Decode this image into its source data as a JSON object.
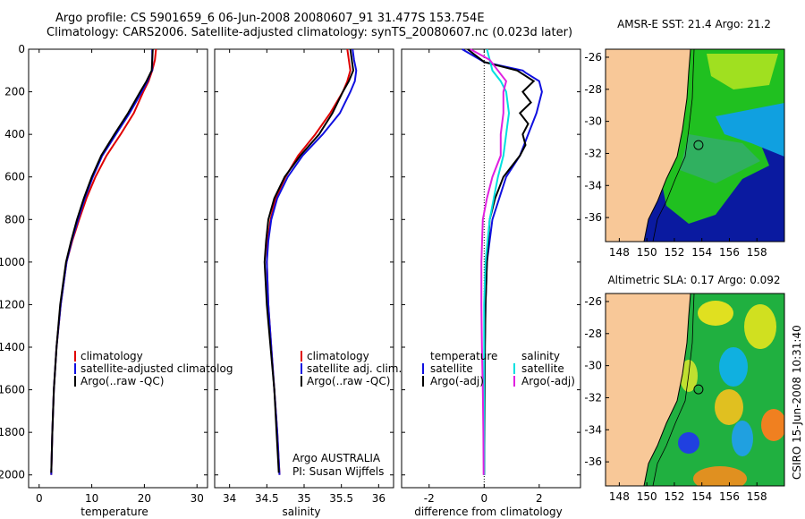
{
  "header": {
    "line1": "Argo profile: CS 5901659_6 06-Jun-2008 20080607_91 31.477S 153.754E",
    "line2": "Climatology: CARS2006. Satellite-adjusted climatology: synTS_20080607.nc (0.023d later)"
  },
  "colors": {
    "red": "#e00000",
    "blue": "#1010e0",
    "black": "#000000",
    "cyan": "#00e0e0",
    "magenta": "#e020e0",
    "land": "#f8c898",
    "ocean_bg": "#0000a0"
  },
  "chart_data": [
    {
      "type": "line",
      "xlabel": "temperature",
      "ylabel": "",
      "xlim": [
        -2,
        32
      ],
      "ylim": [
        2060,
        0
      ],
      "xticks": [
        0,
        10,
        20,
        30
      ],
      "yticks": [
        0,
        200,
        400,
        600,
        800,
        1000,
        1200,
        1400,
        1600,
        1800,
        2000
      ],
      "legend": [
        {
          "label": "climatology",
          "color": "red"
        },
        {
          "label": "satellite-adjusted climatolog",
          "color": "blue"
        },
        {
          "label": "Argo(..raw -QC)",
          "color": "black"
        }
      ],
      "series": [
        {
          "name": "climatology",
          "color": "red",
          "depth": [
            0,
            50,
            100,
            150,
            200,
            300,
            400,
            500,
            600,
            700,
            800,
            900,
            1000,
            1200,
            1400,
            1600,
            1800,
            2000
          ],
          "values": [
            22.2,
            22.0,
            21.5,
            20.8,
            19.8,
            18.0,
            15.5,
            12.8,
            10.7,
            9.0,
            7.6,
            6.3,
            5.2,
            4.1,
            3.3,
            2.8,
            2.5,
            2.3
          ]
        },
        {
          "name": "satellite-adjusted climatology",
          "color": "blue",
          "depth": [
            0,
            100,
            110,
            150,
            200,
            300,
            400,
            500,
            600,
            700,
            800,
            900,
            1000,
            1200,
            1400,
            1600,
            1800,
            2000
          ],
          "values": [
            21.5,
            21.5,
            21.2,
            20.6,
            19.5,
            17.2,
            14.6,
            12.0,
            10.2,
            8.7,
            7.4,
            6.2,
            5.2,
            4.1,
            3.3,
            2.8,
            2.5,
            2.3
          ]
        },
        {
          "name": "Argo(..raw -QC)",
          "color": "black",
          "depth": [
            0,
            100,
            150,
            200,
            300,
            400,
            500,
            600,
            700,
            800,
            900,
            1000,
            1200,
            1400,
            1600,
            1800,
            1990
          ],
          "values": [
            21.6,
            21.4,
            20.4,
            19.2,
            16.9,
            14.3,
            11.8,
            10.0,
            8.5,
            7.2,
            6.1,
            5.1,
            4.0,
            3.3,
            2.8,
            2.5,
            2.3
          ]
        }
      ]
    },
    {
      "type": "line",
      "xlabel": "salinity",
      "xlim": [
        33.8,
        36.2
      ],
      "ylim": [
        2060,
        0
      ],
      "xticks": [
        34,
        34.5,
        35,
        35.5,
        36
      ],
      "legend": [
        {
          "label": "climatology",
          "color": "red"
        },
        {
          "label": "satellite adj. clim.",
          "color": "blue"
        },
        {
          "label": "Argo(..raw -QC)",
          "color": "black"
        }
      ],
      "annotation": [
        "Argo AUSTRALIA",
        "PI: Susan Wijffels"
      ],
      "series": [
        {
          "name": "climatology",
          "color": "red",
          "depth": [
            0,
            50,
            100,
            150,
            200,
            300,
            400,
            500,
            600,
            700,
            800,
            900,
            1000,
            1200,
            1400,
            1600,
            1800,
            2000
          ],
          "values": [
            35.58,
            35.6,
            35.62,
            35.58,
            35.52,
            35.35,
            35.15,
            34.92,
            34.75,
            34.62,
            34.55,
            34.51,
            34.5,
            34.52,
            34.56,
            34.6,
            34.64,
            34.67
          ]
        },
        {
          "name": "satellite adj. clim.",
          "color": "blue",
          "depth": [
            0,
            50,
            100,
            150,
            200,
            300,
            400,
            500,
            600,
            700,
            800,
            900,
            1000,
            1200,
            1400,
            1600,
            1800,
            2000
          ],
          "values": [
            35.65,
            35.67,
            35.7,
            35.68,
            35.62,
            35.48,
            35.25,
            34.98,
            34.78,
            34.64,
            34.56,
            34.52,
            34.5,
            34.52,
            34.56,
            34.6,
            34.64,
            34.67
          ]
        },
        {
          "name": "Argo(..raw -QC)",
          "color": "black",
          "depth": [
            0,
            50,
            100,
            150,
            200,
            300,
            400,
            500,
            600,
            700,
            800,
            900,
            1000,
            1200,
            1400,
            1600,
            1800,
            1990
          ],
          "values": [
            35.62,
            35.64,
            35.66,
            35.6,
            35.52,
            35.38,
            35.2,
            34.95,
            34.74,
            34.6,
            34.52,
            34.49,
            34.47,
            34.5,
            34.55,
            34.6,
            34.63,
            34.66
          ]
        }
      ]
    },
    {
      "type": "line",
      "xlabel": "difference from climatology",
      "xlim": [
        -3,
        3.5
      ],
      "ylim": [
        2060,
        0
      ],
      "xticks": [
        -2,
        0,
        2
      ],
      "legend_left_title": "temperature",
      "legend_right_title": "salinity",
      "legend": [
        {
          "label": "satellite",
          "color": "blue",
          "group": "temperature"
        },
        {
          "label": "Argo(-adj)",
          "color": "black",
          "group": "temperature"
        },
        {
          "label": "satellite",
          "color": "cyan",
          "group": "salinity"
        },
        {
          "label": "Argo(-adj)",
          "color": "magenta",
          "group": "salinity"
        }
      ],
      "series": [
        {
          "name": "temperature satellite",
          "color": "blue",
          "depth": [
            0,
            60,
            100,
            110,
            150,
            200,
            300,
            400,
            500,
            600,
            800,
            1000,
            1200,
            1400,
            1600,
            1800,
            2000
          ],
          "values": [
            -0.8,
            0,
            1.4,
            1.5,
            2.0,
            2.1,
            1.9,
            1.6,
            1.3,
            0.8,
            0.3,
            0.1,
            0.05,
            0.02,
            0.01,
            0,
            0
          ]
        },
        {
          "name": "temperature Argo(-adj)",
          "color": "black",
          "depth": [
            0,
            60,
            100,
            150,
            200,
            250,
            300,
            350,
            400,
            450,
            500,
            600,
            700,
            800,
            1000,
            1200,
            1400,
            1600,
            1800,
            2000
          ],
          "values": [
            -0.6,
            0,
            1.2,
            1.8,
            1.4,
            1.7,
            1.3,
            1.6,
            1.4,
            1.5,
            1.3,
            0.7,
            0.4,
            0.2,
            0.1,
            0.05,
            0.03,
            0.02,
            0.01,
            0
          ]
        },
        {
          "name": "salinity satellite",
          "color": "cyan",
          "depth": [
            0,
            50,
            100,
            150,
            200,
            300,
            400,
            500,
            600,
            800,
            1000,
            1200,
            1400,
            1600,
            1800,
            2000
          ],
          "values": [
            0.1,
            0.2,
            0.3,
            0.6,
            0.8,
            0.9,
            0.8,
            0.7,
            0.5,
            0.2,
            0.05,
            0.0,
            0.0,
            0.0,
            0.0,
            0.0
          ]
        },
        {
          "name": "salinity Argo(-adj)",
          "color": "magenta",
          "depth": [
            0,
            50,
            100,
            150,
            200,
            300,
            400,
            500,
            600,
            700,
            800,
            1000,
            1200,
            1400,
            1600,
            1800,
            2000
          ],
          "values": [
            -0.5,
            0.2,
            0.5,
            0.8,
            0.7,
            0.7,
            0.6,
            0.6,
            0.3,
            0.1,
            -0.05,
            -0.1,
            -0.1,
            -0.08,
            -0.05,
            -0.03,
            -0.02
          ]
        }
      ]
    },
    {
      "type": "heatmap",
      "title": "AMSR-E SST: 21.4  Argo: 21.2",
      "xlim": [
        147,
        160
      ],
      "ylim": [
        -37.5,
        -25.5
      ],
      "xticks": [
        148,
        150,
        152,
        154,
        156,
        158
      ],
      "yticks": [
        -26,
        -28,
        -30,
        -32,
        -34,
        -36
      ],
      "marker": {
        "lon": 153.754,
        "lat": -31.477
      }
    },
    {
      "type": "heatmap",
      "title": "Altimetric SLA: 0.17  Argo: 0.092",
      "xlim": [
        147,
        160
      ],
      "ylim": [
        -37.5,
        -25.5
      ],
      "xticks": [
        148,
        150,
        152,
        154,
        156,
        158
      ],
      "yticks": [
        -26,
        -28,
        -30,
        -32,
        -34,
        -36
      ],
      "marker": {
        "lon": 153.754,
        "lat": -31.477
      }
    }
  ],
  "footer_vertical": "CSIRO 15-Jun-2008 10:31:40"
}
